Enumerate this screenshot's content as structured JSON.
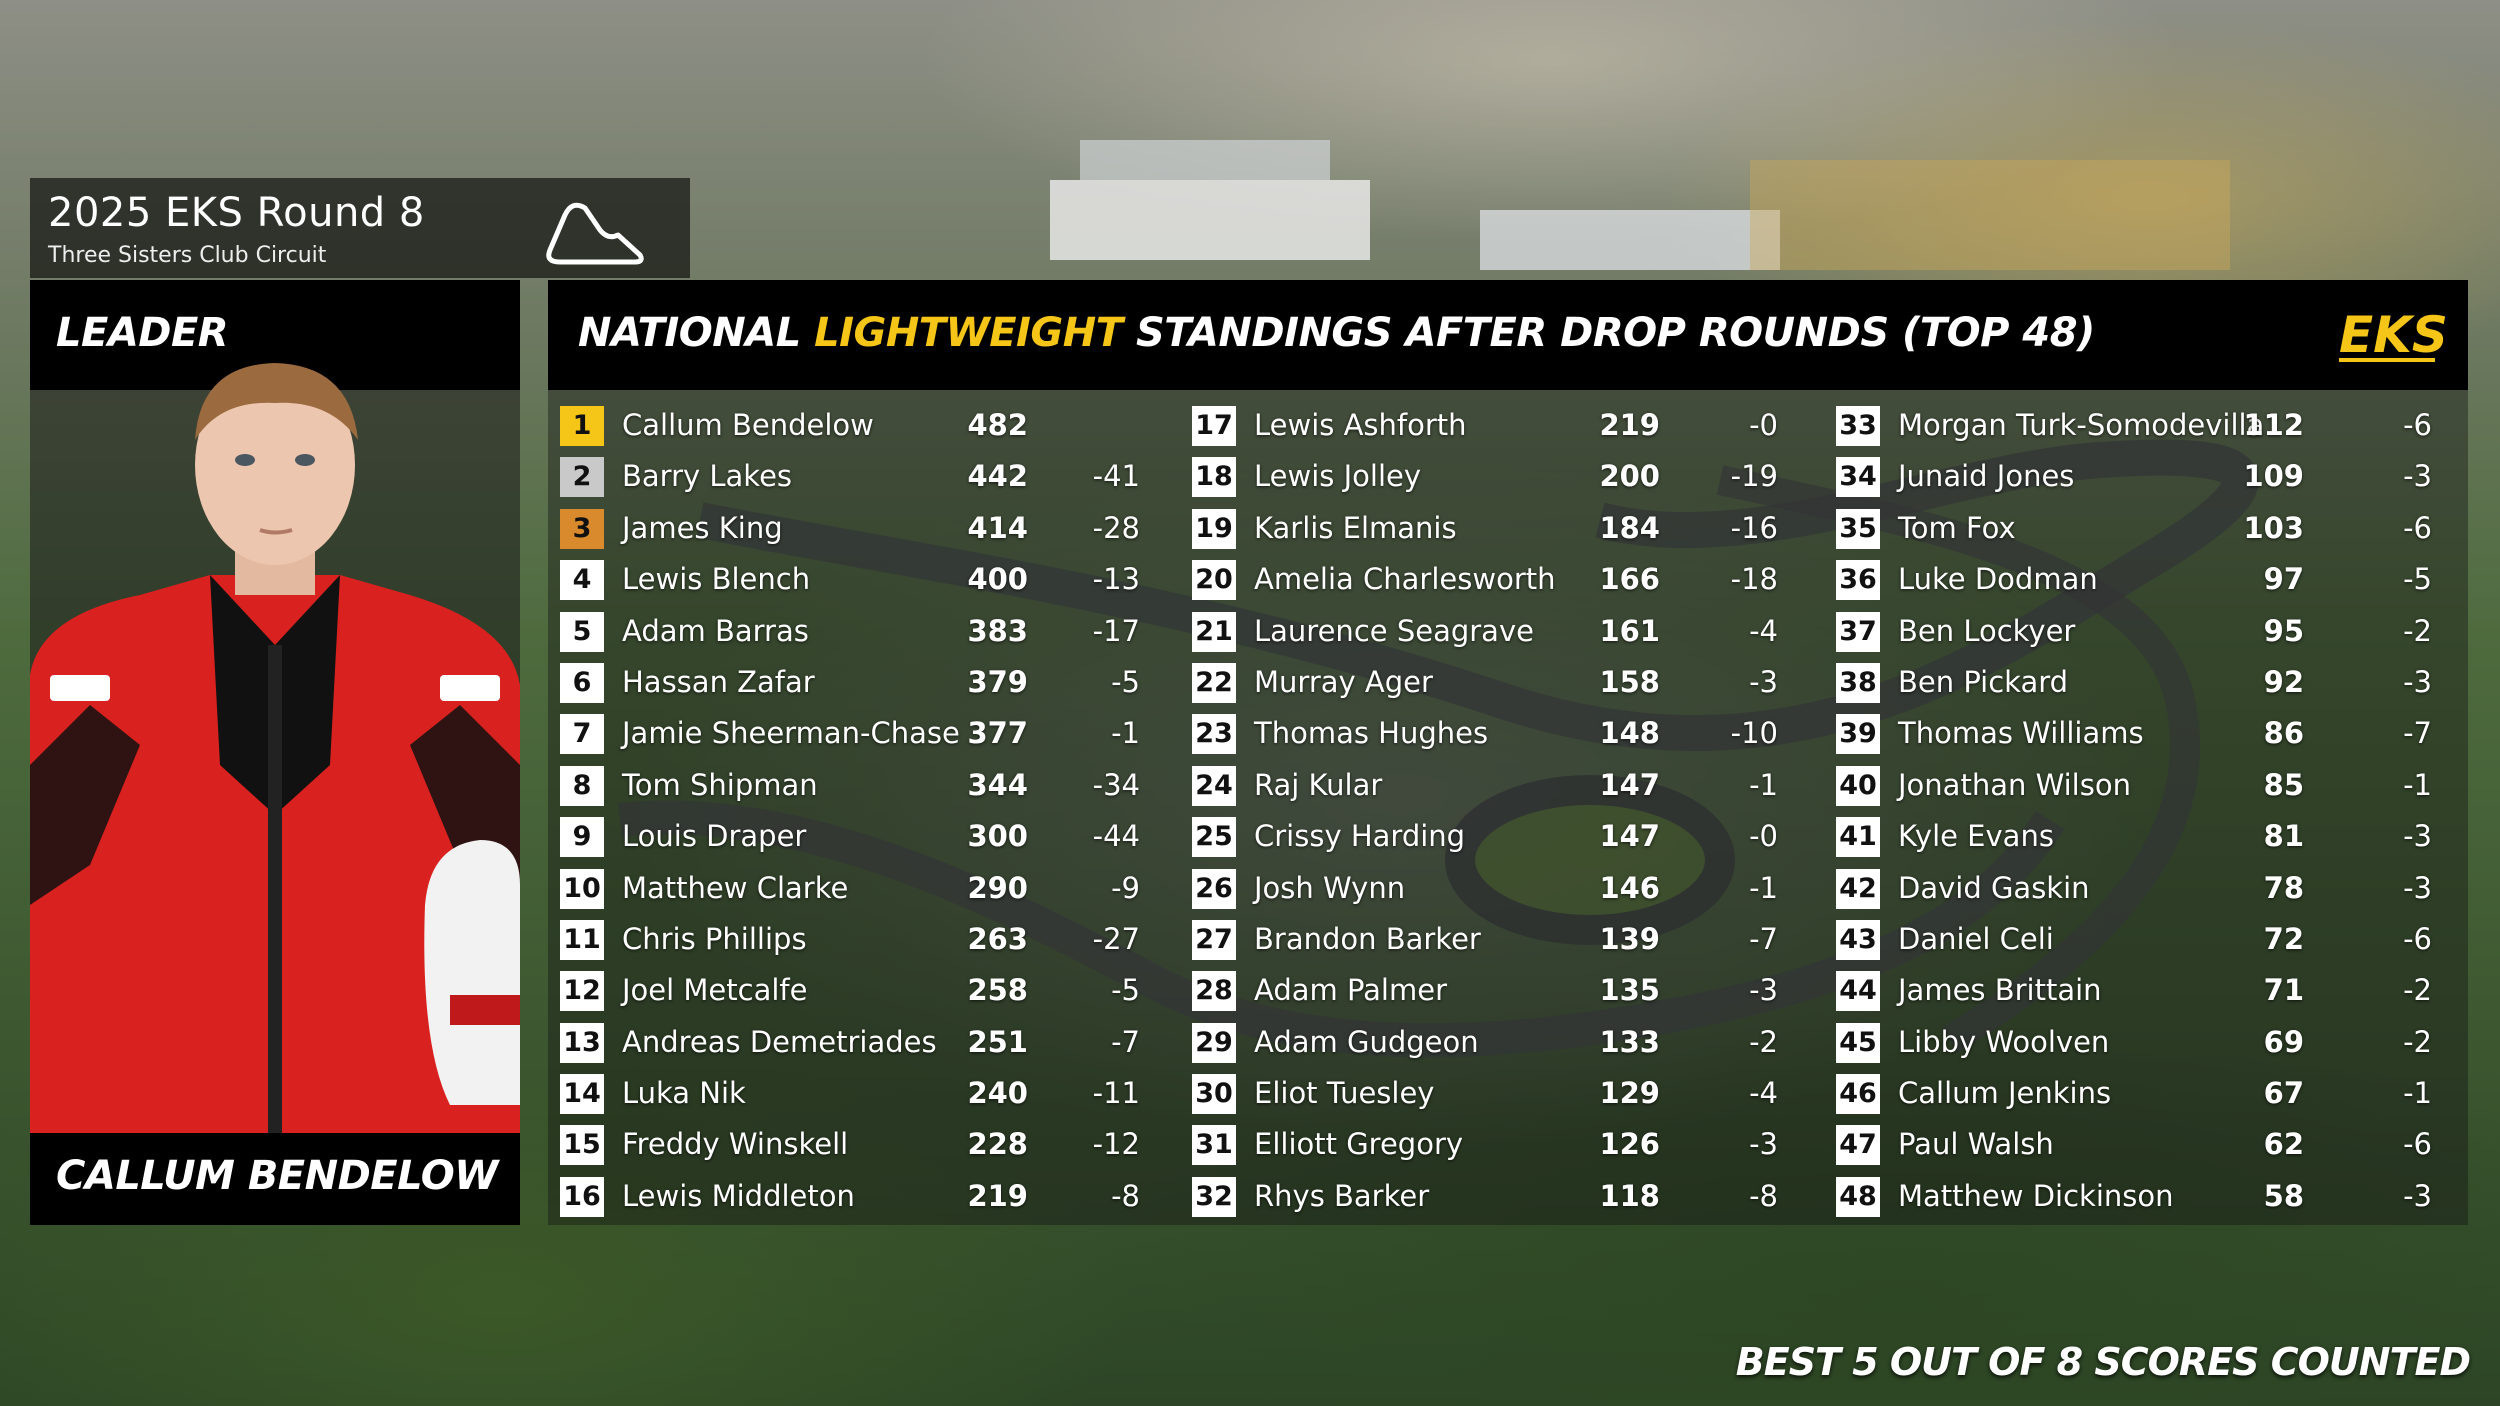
{
  "event": {
    "title": "2025 EKS Round 8",
    "circuit": "Three Sisters Club Circuit"
  },
  "leader": {
    "heading": "LEADER",
    "name": "CALLUM BENDELOW"
  },
  "standings": {
    "title_prefix": "NATIONAL ",
    "title_highlight": "LIGHTWEIGHT",
    "title_suffix": " STANDINGS AFTER DROP ROUNDS (TOP 48)",
    "logo_text": "EKS",
    "rows": [
      {
        "pos": "1",
        "name": "Callum Bendelow",
        "pts": "482",
        "gap": ""
      },
      {
        "pos": "2",
        "name": "Barry Lakes",
        "pts": "442",
        "gap": "-41"
      },
      {
        "pos": "3",
        "name": "James King",
        "pts": "414",
        "gap": "-28"
      },
      {
        "pos": "4",
        "name": "Lewis Blench",
        "pts": "400",
        "gap": "-13"
      },
      {
        "pos": "5",
        "name": "Adam Barras",
        "pts": "383",
        "gap": "-17"
      },
      {
        "pos": "6",
        "name": "Hassan Zafar",
        "pts": "379",
        "gap": "-5"
      },
      {
        "pos": "7",
        "name": "Jamie Sheerman-Chase",
        "pts": "377",
        "gap": "-1"
      },
      {
        "pos": "8",
        "name": "Tom Shipman",
        "pts": "344",
        "gap": "-34"
      },
      {
        "pos": "9",
        "name": "Louis Draper",
        "pts": "300",
        "gap": "-44"
      },
      {
        "pos": "10",
        "name": "Matthew Clarke",
        "pts": "290",
        "gap": "-9"
      },
      {
        "pos": "11",
        "name": "Chris Phillips",
        "pts": "263",
        "gap": "-27"
      },
      {
        "pos": "12",
        "name": "Joel Metcalfe",
        "pts": "258",
        "gap": "-5"
      },
      {
        "pos": "13",
        "name": "Andreas Demetriades",
        "pts": "251",
        "gap": "-7"
      },
      {
        "pos": "14",
        "name": "Luka Nik",
        "pts": "240",
        "gap": "-11"
      },
      {
        "pos": "15",
        "name": "Freddy Winskell",
        "pts": "228",
        "gap": "-12"
      },
      {
        "pos": "16",
        "name": "Lewis Middleton",
        "pts": "219",
        "gap": "-8"
      },
      {
        "pos": "17",
        "name": "Lewis Ashforth",
        "pts": "219",
        "gap": "-0"
      },
      {
        "pos": "18",
        "name": "Lewis Jolley",
        "pts": "200",
        "gap": "-19"
      },
      {
        "pos": "19",
        "name": "Karlis Elmanis",
        "pts": "184",
        "gap": "-16"
      },
      {
        "pos": "20",
        "name": "Amelia Charlesworth",
        "pts": "166",
        "gap": "-18"
      },
      {
        "pos": "21",
        "name": "Laurence Seagrave",
        "pts": "161",
        "gap": "-4"
      },
      {
        "pos": "22",
        "name": "Murray Ager",
        "pts": "158",
        "gap": "-3"
      },
      {
        "pos": "23",
        "name": "Thomas Hughes",
        "pts": "148",
        "gap": "-10"
      },
      {
        "pos": "24",
        "name": "Raj Kular",
        "pts": "147",
        "gap": "-1"
      },
      {
        "pos": "25",
        "name": "Crissy Harding",
        "pts": "147",
        "gap": "-0"
      },
      {
        "pos": "26",
        "name": "Josh Wynn",
        "pts": "146",
        "gap": "-1"
      },
      {
        "pos": "27",
        "name": "Brandon Barker",
        "pts": "139",
        "gap": "-7"
      },
      {
        "pos": "28",
        "name": "Adam Palmer",
        "pts": "135",
        "gap": "-3"
      },
      {
        "pos": "29",
        "name": "Adam Gudgeon",
        "pts": "133",
        "gap": "-2"
      },
      {
        "pos": "30",
        "name": "Eliot Tuesley",
        "pts": "129",
        "gap": "-4"
      },
      {
        "pos": "31",
        "name": "Elliott Gregory",
        "pts": "126",
        "gap": "-3"
      },
      {
        "pos": "32",
        "name": "Rhys Barker",
        "pts": "118",
        "gap": "-8"
      },
      {
        "pos": "33",
        "name": "Morgan Turk-Somodevilla",
        "pts": "112",
        "gap": "-6"
      },
      {
        "pos": "34",
        "name": "Junaid Jones",
        "pts": "109",
        "gap": "-3"
      },
      {
        "pos": "35",
        "name": "Tom Fox",
        "pts": "103",
        "gap": "-6"
      },
      {
        "pos": "36",
        "name": "Luke Dodman",
        "pts": "97",
        "gap": "-5"
      },
      {
        "pos": "37",
        "name": "Ben Lockyer",
        "pts": "95",
        "gap": "-2"
      },
      {
        "pos": "38",
        "name": "Ben Pickard",
        "pts": "92",
        "gap": "-3"
      },
      {
        "pos": "39",
        "name": "Thomas Williams",
        "pts": "86",
        "gap": "-7"
      },
      {
        "pos": "40",
        "name": "Jonathan Wilson",
        "pts": "85",
        "gap": "-1"
      },
      {
        "pos": "41",
        "name": "Kyle Evans",
        "pts": "81",
        "gap": "-3"
      },
      {
        "pos": "42",
        "name": "David Gaskin",
        "pts": "78",
        "gap": "-3"
      },
      {
        "pos": "43",
        "name": "Daniel Celi",
        "pts": "72",
        "gap": "-6"
      },
      {
        "pos": "44",
        "name": "James Brittain",
        "pts": "71",
        "gap": "-2"
      },
      {
        "pos": "45",
        "name": "Libby Woolven",
        "pts": "69",
        "gap": "-2"
      },
      {
        "pos": "46",
        "name": "Callum Jenkins",
        "pts": "67",
        "gap": "-1"
      },
      {
        "pos": "47",
        "name": "Paul Walsh",
        "pts": "62",
        "gap": "-6"
      },
      {
        "pos": "48",
        "name": "Matthew Dickinson",
        "pts": "58",
        "gap": "-3"
      }
    ]
  },
  "footer": {
    "note": "BEST 5 OUT OF 8 SCORES COUNTED"
  },
  "colors": {
    "accent": "#f5c518",
    "first": "#f5c518",
    "second": "#c9c9c9",
    "third": "#d98a2c",
    "suit_red": "#d9221f"
  }
}
